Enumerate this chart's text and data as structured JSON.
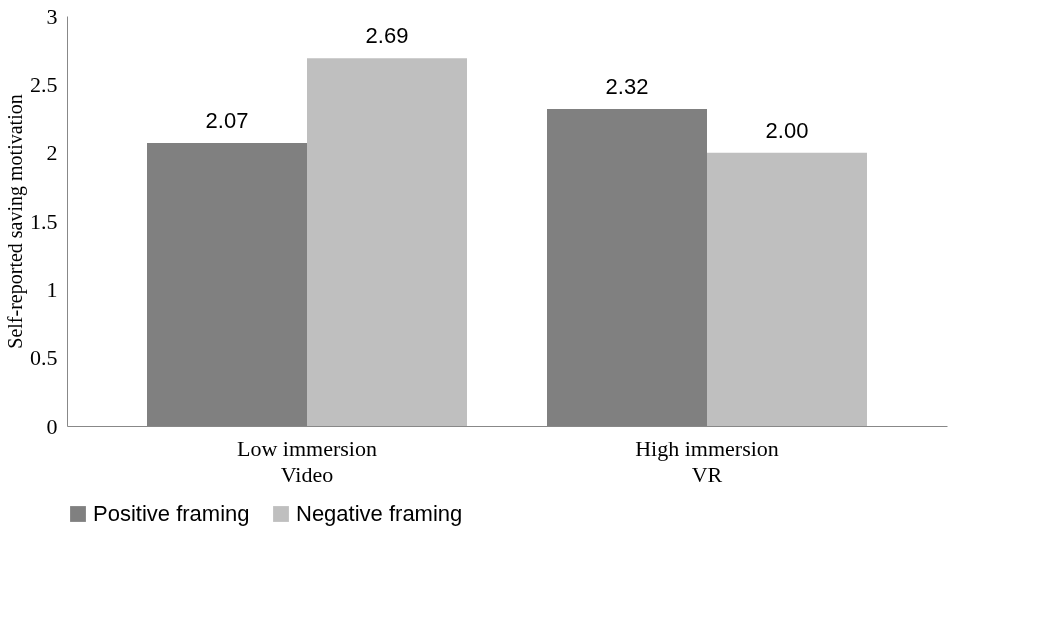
{
  "chart_data": {
    "type": "bar",
    "ylabel": "Self-reported saving motivation",
    "categories": [
      "Low immersion\nVideo",
      "High immersion\nVR"
    ],
    "series": [
      {
        "name": "Positive framing",
        "color": "#808080",
        "values": [
          2.07,
          2.32
        ],
        "value_labels": [
          "2.07",
          "2.32"
        ]
      },
      {
        "name": "Negative framing",
        "color": "#bfbfbf",
        "values": [
          2.69,
          2.0
        ],
        "value_labels": [
          "2.69",
          "2.00"
        ]
      }
    ],
    "ylim": [
      0,
      3
    ],
    "yticks": [
      0,
      0.5,
      1,
      1.5,
      2,
      2.5,
      3
    ],
    "grid": false,
    "legend": "bottom"
  }
}
